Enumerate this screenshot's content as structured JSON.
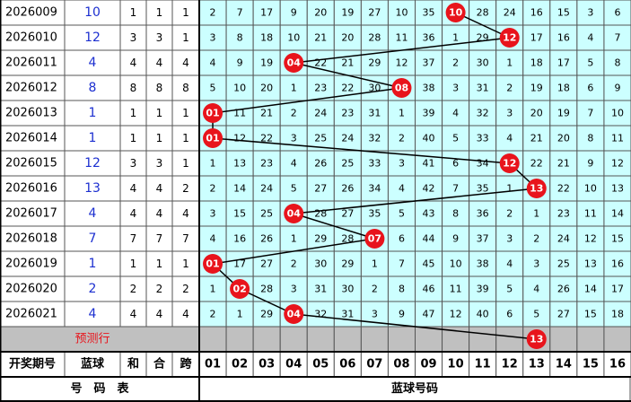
{
  "table": {
    "rows": [
      {
        "issue": "2026009",
        "blue": "10",
        "sum": "1",
        "he": "1",
        "span": "1",
        "cells": [
          "2",
          "7",
          "17",
          "9",
          "20",
          "19",
          "27",
          "10",
          "35",
          "10",
          "28",
          "24",
          "16",
          "15",
          "3",
          "6"
        ]
      },
      {
        "issue": "2026010",
        "blue": "12",
        "sum": "3",
        "he": "3",
        "span": "1",
        "cells": [
          "3",
          "8",
          "18",
          "10",
          "21",
          "20",
          "28",
          "11",
          "36",
          "1",
          "29",
          "12",
          "17",
          "16",
          "4",
          "7"
        ]
      },
      {
        "issue": "2026011",
        "blue": "4",
        "sum": "4",
        "he": "4",
        "span": "4",
        "cells": [
          "4",
          "9",
          "19",
          "04",
          "22",
          "21",
          "29",
          "12",
          "37",
          "2",
          "30",
          "1",
          "18",
          "17",
          "5",
          "8"
        ]
      },
      {
        "issue": "2026012",
        "blue": "8",
        "sum": "8",
        "he": "8",
        "span": "8",
        "cells": [
          "5",
          "10",
          "20",
          "1",
          "23",
          "22",
          "30",
          "08",
          "38",
          "3",
          "31",
          "2",
          "19",
          "18",
          "6",
          "9"
        ]
      },
      {
        "issue": "2026013",
        "blue": "1",
        "sum": "1",
        "he": "1",
        "span": "1",
        "cells": [
          "01",
          "11",
          "21",
          "2",
          "24",
          "23",
          "31",
          "1",
          "39",
          "4",
          "32",
          "3",
          "20",
          "19",
          "7",
          "10"
        ]
      },
      {
        "issue": "2026014",
        "blue": "1",
        "sum": "1",
        "he": "1",
        "span": "1",
        "cells": [
          "01",
          "12",
          "22",
          "3",
          "25",
          "24",
          "32",
          "2",
          "40",
          "5",
          "33",
          "4",
          "21",
          "20",
          "8",
          "11"
        ]
      },
      {
        "issue": "2026015",
        "blue": "12",
        "sum": "3",
        "he": "3",
        "span": "1",
        "cells": [
          "1",
          "13",
          "23",
          "4",
          "26",
          "25",
          "33",
          "3",
          "41",
          "6",
          "34",
          "12",
          "22",
          "21",
          "9",
          "12"
        ]
      },
      {
        "issue": "2026016",
        "blue": "13",
        "sum": "4",
        "he": "4",
        "span": "2",
        "cells": [
          "2",
          "14",
          "24",
          "5",
          "27",
          "26",
          "34",
          "4",
          "42",
          "7",
          "35",
          "1",
          "13",
          "22",
          "10",
          "13"
        ]
      },
      {
        "issue": "2026017",
        "blue": "4",
        "sum": "4",
        "he": "4",
        "span": "4",
        "cells": [
          "3",
          "15",
          "25",
          "04",
          "28",
          "27",
          "35",
          "5",
          "43",
          "8",
          "36",
          "2",
          "1",
          "23",
          "11",
          "14"
        ]
      },
      {
        "issue": "2026018",
        "blue": "7",
        "sum": "7",
        "he": "7",
        "span": "7",
        "cells": [
          "4",
          "16",
          "26",
          "1",
          "29",
          "28",
          "07",
          "6",
          "44",
          "9",
          "37",
          "3",
          "2",
          "24",
          "12",
          "15"
        ]
      },
      {
        "issue": "2026019",
        "blue": "1",
        "sum": "1",
        "he": "1",
        "span": "1",
        "cells": [
          "01",
          "17",
          "27",
          "2",
          "30",
          "29",
          "1",
          "7",
          "45",
          "10",
          "38",
          "4",
          "3",
          "25",
          "13",
          "16"
        ]
      },
      {
        "issue": "2026020",
        "blue": "2",
        "sum": "2",
        "he": "2",
        "span": "2",
        "cells": [
          "1",
          "02",
          "28",
          "3",
          "31",
          "30",
          "2",
          "8",
          "46",
          "11",
          "39",
          "5",
          "4",
          "26",
          "14",
          "17"
        ]
      },
      {
        "issue": "2026021",
        "blue": "4",
        "sum": "4",
        "he": "4",
        "span": "4",
        "cells": [
          "2",
          "1",
          "29",
          "04",
          "32",
          "31",
          "3",
          "9",
          "47",
          "12",
          "40",
          "6",
          "5",
          "27",
          "15",
          "18"
        ]
      }
    ],
    "prediction": {
      "label": "预测行",
      "ball": "13"
    },
    "header": {
      "issue": "开奖期号",
      "blue": "蓝球",
      "sum": "和",
      "he": "合",
      "span": "跨",
      "columns": [
        "01",
        "02",
        "03",
        "04",
        "05",
        "06",
        "07",
        "08",
        "09",
        "10",
        "11",
        "12",
        "13",
        "14",
        "15",
        "16"
      ]
    },
    "footer": {
      "left": "号　码　表",
      "right": "蓝球号码"
    }
  }
}
